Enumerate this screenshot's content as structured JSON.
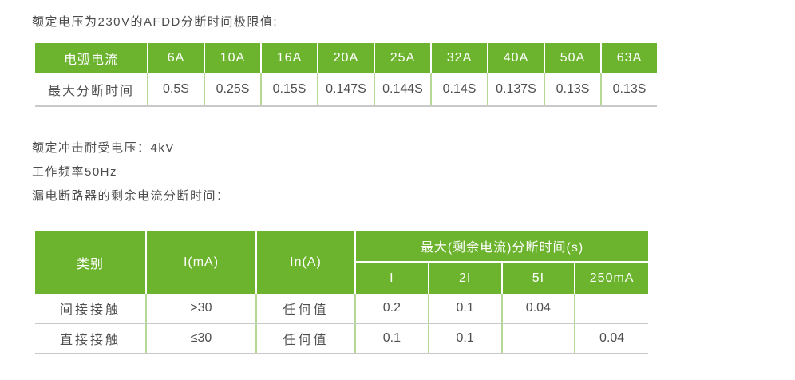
{
  "page": {
    "title": "额定电压为230V的AFDD分断时间极限值:",
    "line_impulse": "额定冲击耐受电压：4kV",
    "line_freq": "工作频率50Hz",
    "line_residual": "漏电断路器的剩余电流分断时间："
  },
  "colors": {
    "header_green": "#6cb32e",
    "separator_light_green": "#b5d896",
    "border_gray": "#c9c9c9",
    "body_text": "#4f4f4f",
    "header_text": "#ffffff"
  },
  "afdd_table": {
    "header": [
      "电弧电流",
      "6A",
      "10A",
      "16A",
      "20A",
      "25A",
      "32A",
      "40A",
      "50A",
      "63A"
    ],
    "row_label": "最大分断时间",
    "values": [
      "0.5S",
      "0.25S",
      "0.15S",
      "0.147S",
      "0.144S",
      "0.14S",
      "0.137S",
      "0.13S",
      "0.13S"
    ]
  },
  "residual_table": {
    "col_category": "类别",
    "col_i_ma": "I(mA)",
    "col_in_a": "In(A)",
    "group_header": "最大(剩余电流)分断时间(s)",
    "sub_headers": [
      "I",
      "2I",
      "5I",
      "250mA"
    ],
    "rows": [
      {
        "category": "间接接触",
        "i_ma": ">30",
        "in_a": "任何值",
        "t_i": "0.2",
        "t_2i": "0.1",
        "t_5i": "0.04",
        "t_250ma": ""
      },
      {
        "category": "直接接触",
        "i_ma": "≤30",
        "in_a": "任何值",
        "t_i": "0.1",
        "t_2i": "0.1",
        "t_5i": "",
        "t_250ma": "0.04"
      }
    ]
  }
}
